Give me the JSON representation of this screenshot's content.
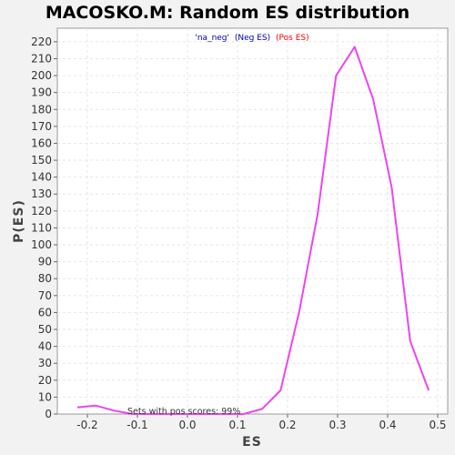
{
  "chart_data": {
    "type": "line",
    "title": "MACOSKO.M: Random ES distribution",
    "xlabel": "ES",
    "ylabel": "P(ES)",
    "xlim": [
      -0.26,
      0.52
    ],
    "ylim": [
      0,
      228
    ],
    "xticks": [
      -0.2,
      -0.1,
      0.0,
      0.1,
      0.2,
      0.3,
      0.4,
      0.5
    ],
    "xtick_labels": [
      "-0.2",
      "-0.1",
      "0.0",
      "0.1",
      "0.2",
      "0.3",
      "0.4",
      "0.5"
    ],
    "yticks": [
      0,
      10,
      20,
      30,
      40,
      50,
      60,
      70,
      80,
      90,
      100,
      110,
      120,
      130,
      140,
      150,
      160,
      170,
      180,
      190,
      200,
      210,
      220
    ],
    "grid": true,
    "legend": {
      "placement": "top-center",
      "items": [
        {
          "text": "'na_neg'",
          "color": "#0000aa"
        },
        {
          "text": "(Neg ES)",
          "color": "#0000aa"
        },
        {
          "text": "(Pos ES)",
          "color": "#ff0000"
        }
      ]
    },
    "annotation": "Sets with pos scores: 99%",
    "series": [
      {
        "color": "#ee44ee",
        "x": [
          -0.22,
          -0.183,
          -0.146,
          -0.11,
          -0.073,
          -0.036,
          0.001,
          0.038,
          0.075,
          0.112,
          0.149,
          0.186,
          0.223,
          0.26,
          0.297,
          0.334,
          0.371,
          0.408,
          0.445,
          0.482
        ],
        "y": [
          4,
          5,
          2,
          0,
          0,
          0,
          0,
          0,
          0,
          0,
          3,
          14,
          60,
          118,
          200,
          217,
          186,
          134,
          43,
          14
        ]
      }
    ]
  }
}
